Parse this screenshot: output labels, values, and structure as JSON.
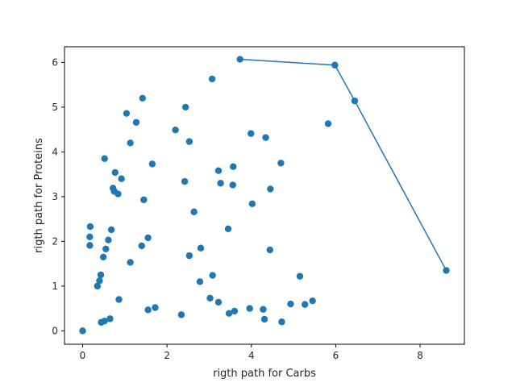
{
  "chart_data": {
    "type": "scatter",
    "title": "",
    "xlabel": "rigth path for Carbs",
    "ylabel": "rigth path for Proteins",
    "xlim": [
      -0.43,
      9.05
    ],
    "ylim": [
      -0.3,
      6.35
    ],
    "xticks": [
      0,
      2,
      4,
      6,
      8
    ],
    "xtick_labels": [
      "0",
      "2",
      "4",
      "6",
      "8"
    ],
    "yticks": [
      0,
      1,
      2,
      3,
      4,
      5,
      6
    ],
    "ytick_labels": [
      "0",
      "1",
      "2",
      "3",
      "4",
      "5",
      "6"
    ],
    "grid": false,
    "color": "#1f77b4",
    "series": [
      {
        "kind": "scatter",
        "points": [
          [
            0.0,
            0.0
          ],
          [
            0.18,
            2.33
          ],
          [
            0.17,
            2.1
          ],
          [
            0.17,
            1.91
          ],
          [
            0.35,
            1.0
          ],
          [
            0.4,
            1.12
          ],
          [
            0.43,
            1.25
          ],
          [
            0.44,
            0.19
          ],
          [
            0.52,
            0.22
          ],
          [
            0.65,
            0.27
          ],
          [
            0.49,
            1.65
          ],
          [
            0.55,
            1.83
          ],
          [
            0.61,
            2.03
          ],
          [
            0.68,
            2.26
          ],
          [
            0.52,
            3.85
          ],
          [
            0.72,
            3.19
          ],
          [
            0.75,
            3.12
          ],
          [
            0.77,
            3.54
          ],
          [
            0.84,
            3.06
          ],
          [
            0.92,
            3.4
          ],
          [
            0.86,
            0.7
          ],
          [
            1.04,
            4.86
          ],
          [
            1.13,
            4.2
          ],
          [
            1.27,
            4.66
          ],
          [
            1.42,
            5.2
          ],
          [
            1.13,
            1.53
          ],
          [
            1.4,
            1.9
          ],
          [
            1.45,
            2.93
          ],
          [
            1.55,
            2.08
          ],
          [
            1.55,
            0.47
          ],
          [
            1.72,
            0.52
          ],
          [
            1.65,
            3.73
          ],
          [
            2.2,
            4.49
          ],
          [
            2.42,
            3.34
          ],
          [
            2.44,
            5.0
          ],
          [
            2.53,
            4.23
          ],
          [
            2.53,
            1.68
          ],
          [
            2.64,
            2.66
          ],
          [
            2.8,
            1.85
          ],
          [
            2.78,
            1.1
          ],
          [
            2.34,
            0.36
          ],
          [
            3.02,
            0.73
          ],
          [
            3.07,
            5.63
          ],
          [
            3.08,
            1.24
          ],
          [
            3.22,
            3.58
          ],
          [
            3.27,
            3.3
          ],
          [
            3.22,
            0.64
          ],
          [
            3.45,
            2.28
          ],
          [
            3.47,
            0.39
          ],
          [
            3.57,
            3.67
          ],
          [
            3.56,
            3.26
          ],
          [
            3.6,
            0.44
          ],
          [
            3.99,
            4.41
          ],
          [
            4.02,
            2.84
          ],
          [
            3.96,
            0.5
          ],
          [
            4.28,
            0.48
          ],
          [
            4.31,
            0.26
          ],
          [
            4.34,
            4.32
          ],
          [
            4.44,
            1.81
          ],
          [
            4.45,
            3.17
          ],
          [
            4.7,
            3.75
          ],
          [
            4.72,
            0.2
          ],
          [
            4.93,
            0.6
          ],
          [
            5.15,
            1.22
          ],
          [
            5.27,
            0.59
          ],
          [
            5.45,
            0.67
          ],
          [
            5.82,
            4.63
          ],
          [
            3.73,
            6.07
          ],
          [
            5.98,
            5.94
          ],
          [
            6.45,
            5.14
          ],
          [
            8.62,
            1.35
          ]
        ]
      },
      {
        "kind": "line",
        "points": [
          [
            3.73,
            6.07
          ],
          [
            5.98,
            5.94
          ],
          [
            6.45,
            5.14
          ],
          [
            8.62,
            1.35
          ]
        ]
      }
    ]
  }
}
